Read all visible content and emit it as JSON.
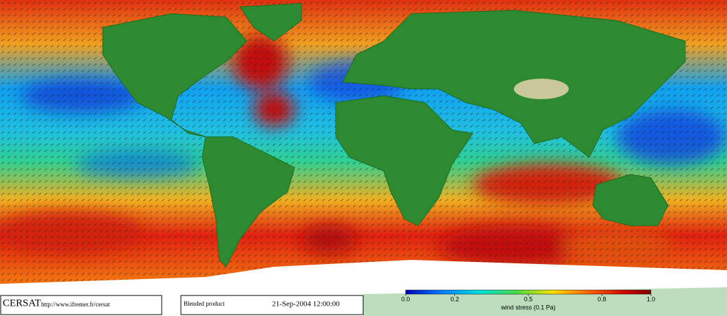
{
  "footer": {
    "logo": "CERSAT",
    "url": "http://www.ifremer.fr/cersat",
    "product": "Blended product",
    "date": "21-Sep-2004 12:00:00"
  },
  "colorbar": {
    "label": "wind stress (0.1 Pa)",
    "range": [
      0,
      1
    ],
    "ticks": [
      {
        "value": 0,
        "label": "0.0"
      },
      0.2,
      0.5,
      0.8,
      {
        "value": 1,
        "label": "1.0"
      }
    ]
  }
}
